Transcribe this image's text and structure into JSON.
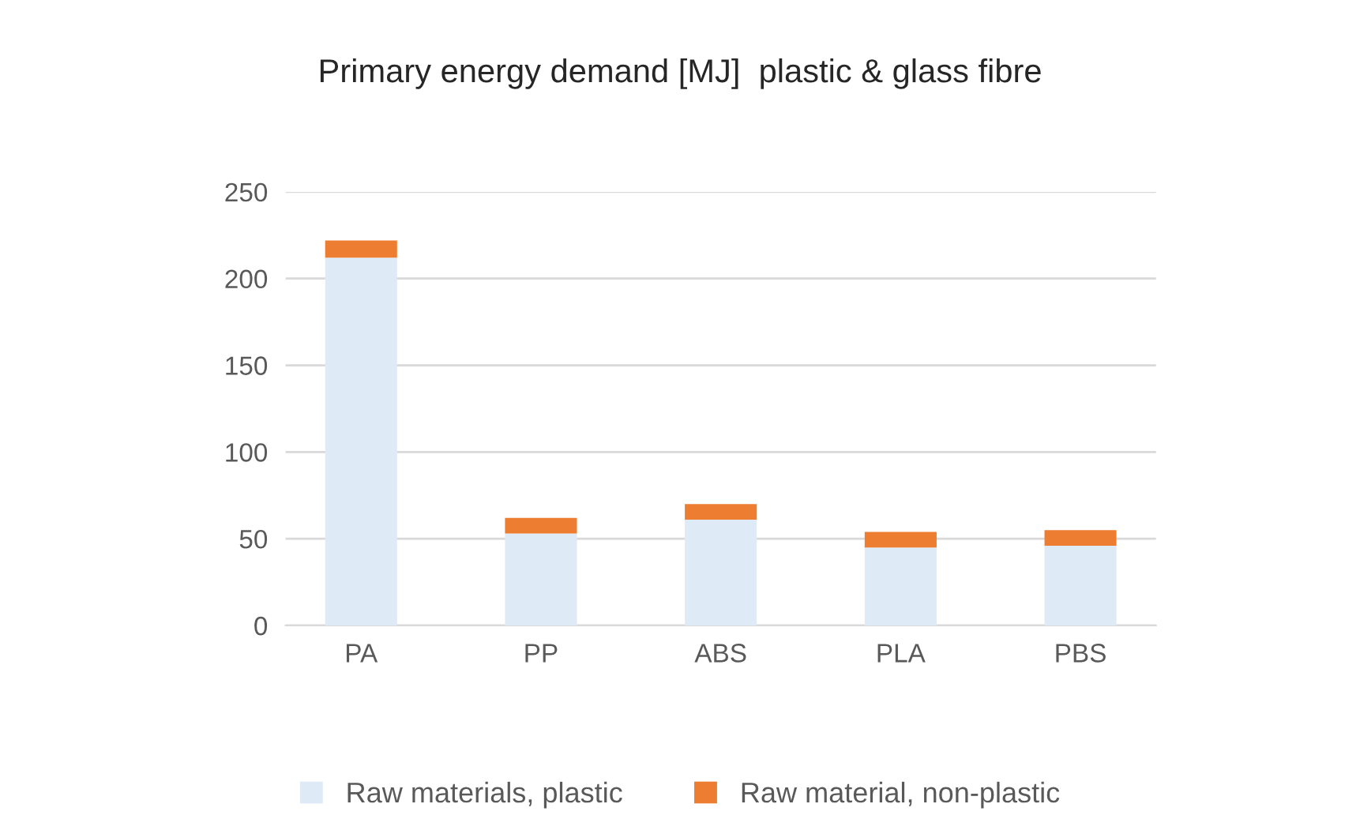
{
  "chart_data": {
    "type": "bar",
    "title": "Primary energy demand [MJ]  plastic & glass fibre",
    "categories": [
      "PA",
      "PP",
      "ABS",
      "PLA",
      "PBS"
    ],
    "stacked": true,
    "series": [
      {
        "name": "Raw materials, plastic",
        "color": "#deeaf6",
        "values": [
          212,
          53,
          61,
          45,
          46
        ]
      },
      {
        "name": "Raw material, non-plastic",
        "color": "#ed7d31",
        "values": [
          10,
          9,
          9,
          9,
          9
        ]
      }
    ],
    "ylim": [
      0,
      250
    ],
    "yticks": [
      0,
      50,
      100,
      150,
      200,
      250
    ],
    "grid": "y",
    "legend": "bottom"
  }
}
